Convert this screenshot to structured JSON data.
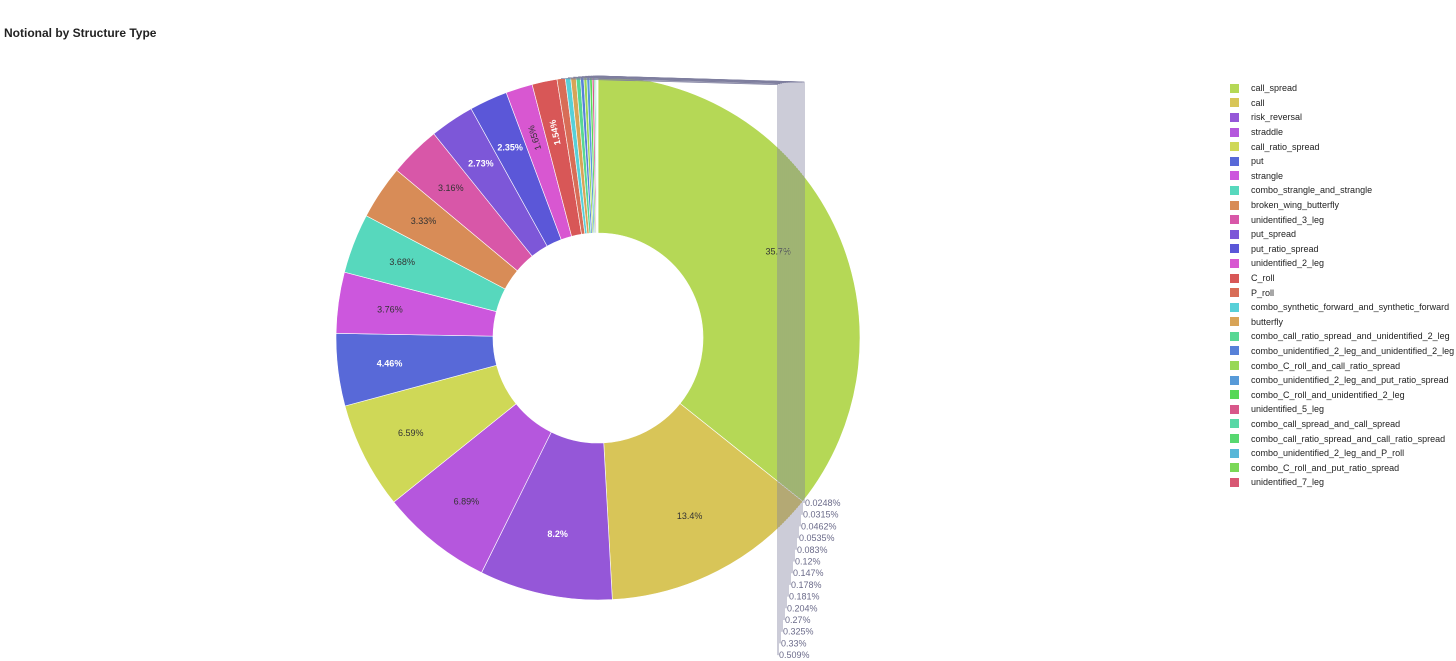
{
  "chart_data": {
    "type": "pie",
    "title": "Notional by Structure Type",
    "hole": true,
    "legend_position": "right",
    "slices": [
      {
        "label": "call_spread",
        "percent": 35.7,
        "color": "#b5d856"
      },
      {
        "label": "call",
        "percent": 13.4,
        "color": "#d8c558"
      },
      {
        "label": "risk_reversal",
        "percent": 8.2,
        "color": "#9557d8"
      },
      {
        "label": "straddle",
        "percent": 6.89,
        "color": "#b557dd"
      },
      {
        "label": "call_ratio_spread",
        "percent": 6.59,
        "color": "#cfd857"
      },
      {
        "label": "put",
        "percent": 4.46,
        "color": "#5869d8"
      },
      {
        "label": "strangle",
        "percent": 3.76,
        "color": "#cc57dd"
      },
      {
        "label": "combo_strangle_and_strangle",
        "percent": 3.68,
        "color": "#57d8bd"
      },
      {
        "label": "broken_wing_butterfly",
        "percent": 3.33,
        "color": "#d88c57"
      },
      {
        "label": "unidentified_3_leg",
        "percent": 3.16,
        "color": "#d857a8"
      },
      {
        "label": "put_spread",
        "percent": 2.73,
        "color": "#7d57d8"
      },
      {
        "label": "put_ratio_spread",
        "percent": 2.35,
        "color": "#5b57d8"
      },
      {
        "label": "unidentified_2_leg",
        "percent": 1.65,
        "color": "#d857d1"
      },
      {
        "label": "C_roll",
        "percent": 1.54,
        "color": "#d85757"
      },
      {
        "label": "P_roll",
        "percent": 0.509,
        "color": "#d86d57"
      },
      {
        "label": "combo_synthetic_forward_and_synthetic_forward",
        "percent": 0.33,
        "color": "#57d0d8"
      },
      {
        "label": "butterfly",
        "percent": 0.325,
        "color": "#d8a457"
      },
      {
        "label": "combo_call_ratio_spread_and_unidentified_2_leg",
        "percent": 0.27,
        "color": "#57d894"
      },
      {
        "label": "combo_unidentified_2_leg_and_unidentified_2_leg",
        "percent": 0.204,
        "color": "#5781d8"
      },
      {
        "label": "combo_C_roll_and_call_ratio_spread",
        "percent": 0.181,
        "color": "#98d857"
      },
      {
        "label": "combo_unidentified_2_leg_and_put_ratio_spread",
        "percent": 0.178,
        "color": "#579ad8"
      },
      {
        "label": "combo_C_roll_and_unidentified_2_leg",
        "percent": 0.147,
        "color": "#57d857"
      },
      {
        "label": "unidentified_5_leg",
        "percent": 0.12,
        "color": "#d8578a"
      },
      {
        "label": "combo_call_spread_and_call_spread",
        "percent": 0.083,
        "color": "#57d8a6"
      },
      {
        "label": "combo_call_ratio_spread_and_call_ratio_spread",
        "percent": 0.0535,
        "color": "#57d870"
      },
      {
        "label": "combo_unidentified_2_leg_and_P_roll",
        "percent": 0.0462,
        "color": "#57b7d8"
      },
      {
        "label": "combo_C_roll_and_put_ratio_spread",
        "percent": 0.0315,
        "color": "#7ad857"
      },
      {
        "label": "unidentified_7_leg",
        "percent": 0.0248,
        "color": "#d85773"
      }
    ],
    "outside_labels": [
      "0.0248%",
      "0.0315%",
      "0.0462%",
      "0.0535%",
      "0.083%",
      "0.12%",
      "0.147%",
      "0.178%",
      "0.181%",
      "0.204%",
      "0.27%",
      "0.325%",
      "0.33%",
      "0.509%"
    ]
  }
}
